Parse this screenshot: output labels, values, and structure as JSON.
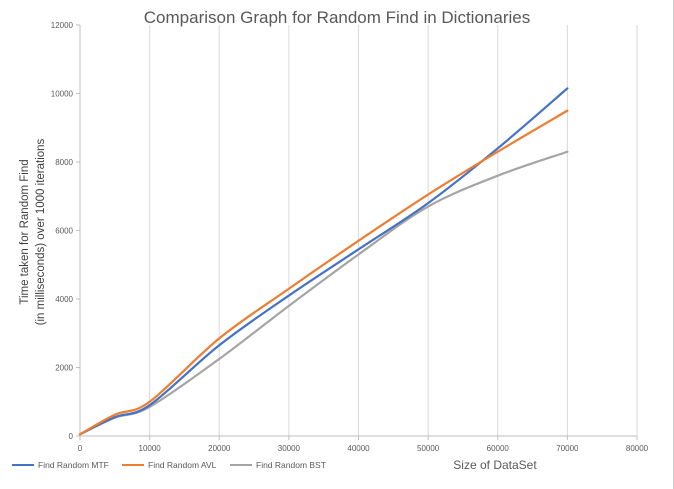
{
  "chart_data": {
    "type": "line",
    "title": "Comparison Graph for Random Find in Dictionaries",
    "xlabel": "Size of DataSet",
    "ylabel_lines": [
      "Time taken for Random Find",
      "(in milliseconds) over 1000 iterations"
    ],
    "xlim": [
      0,
      80000
    ],
    "ylim": [
      0,
      12000
    ],
    "x_ticks": [
      0,
      10000,
      20000,
      30000,
      40000,
      50000,
      60000,
      70000,
      80000
    ],
    "y_ticks": [
      0,
      2000,
      4000,
      6000,
      8000,
      10000,
      12000
    ],
    "grid": "vertical",
    "legend_position": "bottom-left",
    "x": [
      0,
      5000,
      10000,
      20000,
      30000,
      40000,
      50000,
      60000,
      70000
    ],
    "series": [
      {
        "name": "Find Random MTF",
        "color": "#4472c4",
        "values": [
          50,
          550,
          900,
          2650,
          4100,
          5450,
          6800,
          8400,
          10150
        ]
      },
      {
        "name": "Find Random AVL",
        "color": "#ed7d31",
        "values": [
          50,
          620,
          1000,
          2850,
          4300,
          5700,
          7050,
          8300,
          9500
        ]
      },
      {
        "name": "Find Random BST",
        "color": "#a5a5a5",
        "values": [
          50,
          530,
          850,
          2250,
          3800,
          5300,
          6700,
          7600,
          8300
        ]
      }
    ]
  }
}
